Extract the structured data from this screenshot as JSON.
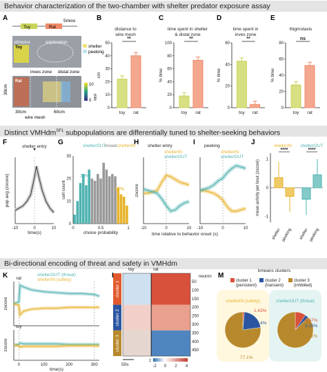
{
  "sections": {
    "top": "Behavior characterization of the two-chamber with shelter predator exposure assay",
    "middle_pre": "Distinct VMHdm",
    "middle_sup": "SF1",
    "middle_post": " subpopulations are differentially tuned to shelter-seeking behaviors",
    "bottom": "Bi-directional encoding of threat and safety in VMHdm"
  },
  "panel_letters": [
    "A",
    "B",
    "C",
    "D",
    "E",
    "F",
    "G",
    "H",
    "I",
    "J",
    "K",
    "L",
    "M"
  ],
  "colors": {
    "toy": "#c9d45a",
    "rat": "#f08a6a",
    "shelter_in": "#e7b32a",
    "shelter_out": "#4fb3b0",
    "gray": "#9a9a9a"
  },
  "panel_a": {
    "timeline_toy": "Toy",
    "timeline_rat": "Rat",
    "duration": "5mins",
    "stimulus": "stimulus",
    "exploration": "exploration",
    "legend_shelter": "shelter",
    "legend_peeking": "peeking",
    "zone_labels": [
      "inves zone",
      "distal zone"
    ],
    "toy_tag": "Toy",
    "rat_tag": "Rat",
    "dim_30cm": "30cm",
    "dim_30cm_b": "30cm",
    "dim_60cm": "60cm",
    "wire_mesh": "wire mesh",
    "colorbar_min": "0",
    "colorbar_max": "10",
    "colorbar_unit": "min"
  },
  "chart_data": [
    {
      "panel": "B",
      "type": "bar",
      "title": "distance to wire mesh",
      "ylabel": "cm",
      "categories": [
        "toy",
        "rat"
      ],
      "values": [
        22,
        40
      ],
      "ylim": [
        0,
        50
      ],
      "yticks": [
        "0",
        "10",
        "20",
        "30",
        "40",
        "50"
      ],
      "sig": "**"
    },
    {
      "panel": "C",
      "type": "bar",
      "title": "time spent in shelter & distal zone",
      "ylabel": "% time",
      "categories": [
        "toy",
        "rat"
      ],
      "values": [
        18,
        73
      ],
      "ylim": [
        0,
        100
      ],
      "yticks": [
        "0",
        "20",
        "40",
        "60",
        "80",
        "100"
      ],
      "sig": "**"
    },
    {
      "panel": "D",
      "type": "bar",
      "title": "time spent in inves zone",
      "ylabel": "% time",
      "categories": [
        "toy",
        "rat"
      ],
      "values": [
        43,
        3
      ],
      "ylim": [
        0,
        60
      ],
      "yticks": [
        "0",
        "20",
        "40",
        "60"
      ],
      "sig": "**"
    },
    {
      "panel": "E",
      "type": "bar",
      "title": "thigmotaxis",
      "ylabel": "% time",
      "categories": [
        "toy",
        "rat"
      ],
      "values": [
        28,
        52
      ],
      "ylim": [
        0,
        80
      ],
      "yticks": [
        "0",
        "20",
        "40",
        "60",
        "80"
      ],
      "sig": "ns"
    },
    {
      "panel": "F",
      "type": "line",
      "annotation": "shelter entry",
      "xlabel": "time(s)",
      "ylabel": "pop avg (zscore)",
      "xticks": [
        "-10",
        "0",
        "10"
      ],
      "x": [
        -10,
        -8,
        -6,
        -4,
        -2,
        0,
        1,
        2,
        4,
        6,
        8,
        10
      ],
      "y": [
        0.0,
        0.05,
        0.1,
        0.2,
        0.35,
        0.75,
        1.0,
        0.8,
        0.45,
        0.2,
        0.05,
        -0.05
      ]
    },
    {
      "panel": "G",
      "type": "bar",
      "xlabel": "choice probability",
      "ylabel": "cell count",
      "xticks": [
        "0",
        "0.5",
        "1"
      ],
      "yticks": [
        "0",
        "10",
        "20",
        "30"
      ],
      "ylim": [
        0,
        30
      ],
      "legend": [
        "shelterOUT",
        "mixed",
        "shelterIN"
      ],
      "annotations": [
        "33%",
        "12%"
      ],
      "x": [
        0.05,
        0.1,
        0.15,
        0.2,
        0.25,
        0.3,
        0.35,
        0.4,
        0.45,
        0.5,
        0.55,
        0.6,
        0.65,
        0.7,
        0.75,
        0.8,
        0.85,
        0.9,
        0.95
      ],
      "values": [
        4,
        10,
        18,
        22,
        17,
        24,
        20,
        19,
        22,
        20,
        27,
        24,
        21,
        22,
        21,
        16,
        13,
        12,
        8
      ],
      "groups": [
        "out",
        "out",
        "out",
        "out",
        "out",
        "out",
        "mixed",
        "mixed",
        "mixed",
        "mixed",
        "mixed",
        "mixed",
        "mixed",
        "mixed",
        "mixed",
        "in",
        "in",
        "in",
        "in"
      ]
    },
    {
      "panel": "H",
      "type": "line",
      "annotation": "shelter entry",
      "legend": [
        "shelterIN",
        "shelterOUT"
      ],
      "ylabel": "zscore",
      "xticks": [
        "-10",
        "0",
        "10"
      ],
      "x": [
        -10,
        -8,
        -6,
        -4,
        -2,
        0,
        2,
        4,
        6,
        8,
        10
      ],
      "series": [
        {
          "name": "shelterIN",
          "values": [
            -0.1,
            -0.1,
            -0.05,
            0.0,
            0.3,
            0.55,
            0.5,
            0.4,
            0.3,
            0.25,
            0.2
          ]
        },
        {
          "name": "shelterOUT",
          "values": [
            0.05,
            0.0,
            -0.05,
            -0.1,
            -0.3,
            -0.55,
            -0.75,
            -0.7,
            -0.55,
            -0.45,
            -0.4
          ]
        }
      ]
    },
    {
      "panel": "I",
      "type": "line",
      "annotation": "peeking",
      "legend": [
        "shelterIN",
        "shelterOUT"
      ],
      "xlabel": "time relative to behavior onset (s)",
      "xticks": [
        "-10",
        "0",
        "10"
      ],
      "x": [
        -10,
        -8,
        -6,
        -4,
        -2,
        0,
        2,
        4,
        6,
        8,
        10
      ],
      "series": [
        {
          "name": "shelterIN",
          "values": [
            0.0,
            0.0,
            -0.05,
            -0.1,
            -0.2,
            -0.35,
            -0.6,
            -0.75,
            -0.75,
            -0.7,
            -0.65
          ]
        },
        {
          "name": "shelterOUT",
          "values": [
            0.0,
            0.05,
            0.1,
            0.2,
            0.35,
            0.45,
            0.65,
            0.8,
            0.9,
            0.85,
            0.8
          ]
        }
      ]
    },
    {
      "panel": "J",
      "type": "bar",
      "ylabel": "mean activity per bout (zscore)",
      "yticks": [
        "-1",
        "0",
        "1"
      ],
      "ylim": [
        -1.2,
        1.2
      ],
      "group_labels": [
        "shelterIN",
        "shelterOUT"
      ],
      "sig": [
        "****",
        "****"
      ],
      "categories": [
        "shelter",
        "peeking",
        "shelter",
        "peeking"
      ],
      "values": [
        0.35,
        -0.3,
        -0.4,
        0.45
      ]
    },
    {
      "panel": "K",
      "type": "line",
      "legend": [
        "shelterOUT (threat)",
        "shelterIN (safety)"
      ],
      "event_top": "rat",
      "event_bottom": "toy",
      "ylabel": "zscore",
      "xlabel": "time(s)",
      "xticks": [
        "0",
        "100",
        "200",
        "300"
      ],
      "x": [
        -20,
        0,
        5,
        20,
        50,
        100,
        150,
        200,
        250,
        300,
        320
      ],
      "series": [
        {
          "name": "shelterOUT (threat) rat",
          "values": [
            0.0,
            0.1,
            1.0,
            0.9,
            0.75,
            0.65,
            0.6,
            0.55,
            0.55,
            0.5,
            0.4
          ]
        },
        {
          "name": "shelterIN (safety) rat",
          "values": [
            0.0,
            -0.1,
            -0.6,
            -0.4,
            -0.3,
            -0.25,
            -0.25,
            -0.2,
            -0.2,
            -0.2,
            -0.2
          ]
        },
        {
          "name": "shelterOUT (threat) toy",
          "values": [
            0.0,
            0.05,
            0.15,
            0.1,
            0.1,
            0.1,
            0.1,
            0.05,
            0.05,
            0.05,
            0.05
          ]
        },
        {
          "name": "shelterIN (safety) toy",
          "values": [
            0.0,
            -0.05,
            -0.15,
            -0.1,
            -0.1,
            -0.1,
            -0.1,
            -0.05,
            -0.05,
            -0.05,
            -0.05
          ]
        }
      ]
    },
    {
      "panel": "L",
      "type": "heatmap",
      "column_labels": [
        "toy",
        "rat"
      ],
      "row_groups": [
        "cluster 1",
        "cluster 2",
        "cluster 3"
      ],
      "ylabel": "neuron",
      "yticks": [
        "50",
        "100",
        "150",
        "200",
        "250",
        "300",
        "350",
        "400",
        "450"
      ],
      "scale_bar": "50s",
      "colorbar_label": "z",
      "colorbar_ticks": [
        "-2",
        "0",
        "2",
        "4"
      ]
    },
    {
      "panel": "M",
      "type": "pie",
      "title": "kmeans clusters",
      "legend": [
        "cluster 1 (persistent)",
        "cluster 2 (transient)",
        "cluster 3 (inhibited)"
      ],
      "pies": [
        {
          "title": "shelterIN (safety)",
          "labels": [
            "1.43%",
            "21.4%",
            "77.1%"
          ],
          "values": [
            1.43,
            21.4,
            77.1
          ]
        },
        {
          "title": "shelterOUT (threat)",
          "labels": [
            "9.57%",
            "3.19%",
            "87.2%"
          ],
          "values": [
            9.57,
            3.19,
            87.2
          ]
        }
      ]
    }
  ]
}
